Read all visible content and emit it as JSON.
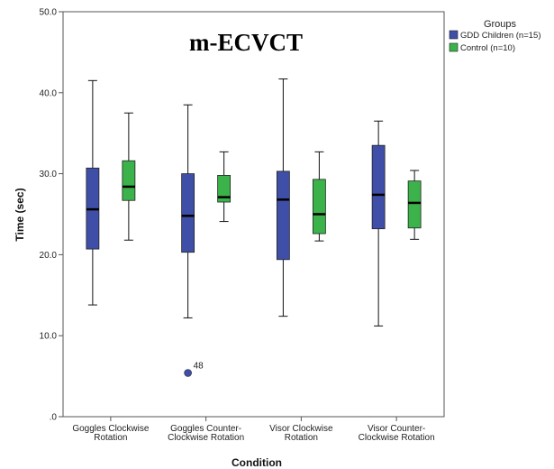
{
  "chart_data": {
    "type": "boxplot",
    "title": "m-ECVCT",
    "xlabel": "Condition",
    "ylabel": "Time (sec)",
    "ylim": [
      0,
      50
    ],
    "yticks": [
      ".0",
      "10.0",
      "20.0",
      "30.0",
      "40.0",
      "50.0"
    ],
    "ytick_values": [
      0,
      10,
      20,
      30,
      40,
      50
    ],
    "categories": [
      [
        "Goggles Clockwise",
        "Rotation"
      ],
      [
        "Goggles Counter-",
        "Clockwise Rotation"
      ],
      [
        "Visor Clockwise",
        "Rotation"
      ],
      [
        "Visor Counter-",
        "Clockwise Rotation"
      ]
    ],
    "legend_title": "Groups",
    "legend_position": "top-right",
    "series": [
      {
        "name": "GDD Children (n=15)",
        "color": "#3f4fa8",
        "boxes": [
          {
            "min": 13.8,
            "q1": 20.7,
            "median": 25.6,
            "q3": 30.7,
            "max": 41.5
          },
          {
            "min": 12.2,
            "q1": 20.3,
            "median": 24.8,
            "q3": 30.0,
            "max": 38.5,
            "outliers": [
              {
                "value": 5.4,
                "label": "48"
              }
            ]
          },
          {
            "min": 12.4,
            "q1": 19.4,
            "median": 26.8,
            "q3": 30.3,
            "max": 41.7
          },
          {
            "min": 11.2,
            "q1": 23.2,
            "median": 27.4,
            "q3": 33.5,
            "max": 36.5
          }
        ]
      },
      {
        "name": "Control (n=10)",
        "color": "#3bb34a",
        "boxes": [
          {
            "min": 21.8,
            "q1": 26.7,
            "median": 28.4,
            "q3": 31.6,
            "max": 37.5
          },
          {
            "min": 24.1,
            "q1": 26.5,
            "median": 27.1,
            "q3": 29.8,
            "max": 32.7
          },
          {
            "min": 21.7,
            "q1": 22.6,
            "median": 25.0,
            "q3": 29.3,
            "max": 32.7
          },
          {
            "min": 21.9,
            "q1": 23.3,
            "median": 26.4,
            "q3": 29.1,
            "max": 30.4
          }
        ]
      }
    ]
  }
}
